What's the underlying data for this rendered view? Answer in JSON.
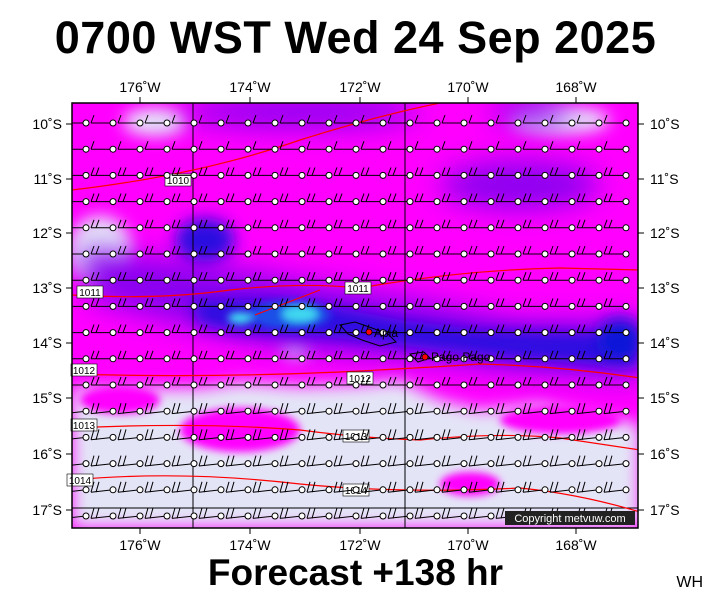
{
  "title": "0700 WST Wed 24 Sep 2025",
  "footer": "Forecast +138 hr",
  "corner_code": "WH",
  "copyright": "Copyright metvuw.com",
  "lon_labels": [
    "176˚W",
    "174˚W",
    "172˚W",
    "170˚W",
    "168˚W"
  ],
  "lat_labels": [
    "10˚S",
    "11˚S",
    "12˚S",
    "13˚S",
    "14˚S",
    "15˚S",
    "16˚S",
    "17˚S"
  ],
  "cities": [
    {
      "name": "Apia"
    },
    {
      "name": "Pago Pago"
    }
  ],
  "isobar_labels": [
    "1010",
    "1011",
    "1011",
    "1012",
    "1012",
    "1013",
    "1013",
    "1014",
    "1014"
  ],
  "colors": {
    "calm": "#e4e4f7",
    "light": "#ff00ff",
    "moderate": "#8a00f0",
    "strong": "#2a10e0",
    "deep": "#0a18d8",
    "core": "#40d8f0",
    "isobar": "#ff0000",
    "border": "#000000"
  }
}
